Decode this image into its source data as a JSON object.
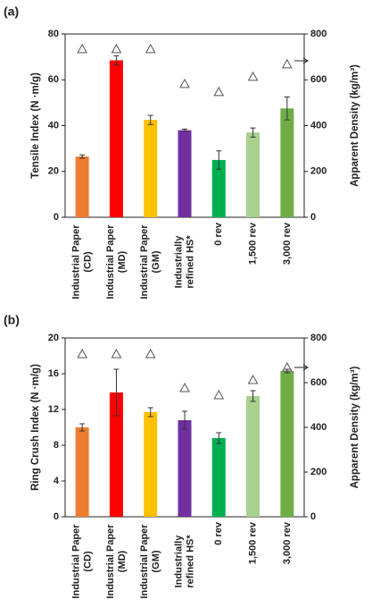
{
  "chart_data": [
    {
      "type": "bar",
      "panel_label": "(a)",
      "ylabel": "Tensile Index (N ·m/g)",
      "y2label": "Apparent Density (kg/m³)",
      "categories": [
        [
          "Industrial Paper",
          "(CD)"
        ],
        [
          "Industrial Paper",
          "(MD)"
        ],
        [
          "Industrial Paper",
          "(GM)"
        ],
        [
          "Industrially",
          "refined HS*"
        ],
        [
          "0 rev"
        ],
        [
          "1,500 rev"
        ],
        [
          "3,000 rev"
        ]
      ],
      "series": [
        {
          "values": [
            26.5,
            68.5,
            42.5,
            38,
            25,
            37,
            47.5
          ],
          "errors": [
            0.7,
            2,
            2,
            0.5,
            4,
            2,
            5
          ],
          "colors": [
            "#ed7d31",
            "#ff0000",
            "#ffc000",
            "#7030a0",
            "#00b050",
            "#a9d18e",
            "#70ad47"
          ]
        },
        {
          "axis": "y2",
          "marker": "triangle",
          "color": "#555555",
          "values": [
            734,
            734,
            734,
            582,
            547,
            613,
            668
          ]
        }
      ],
      "ylim": [
        0,
        80
      ],
      "yticks": [
        0,
        20,
        40,
        60,
        80
      ],
      "y2lim": [
        0,
        800
      ],
      "y2ticks": [
        0,
        200,
        400,
        600,
        800
      ]
    },
    {
      "type": "bar",
      "panel_label": "(b)",
      "ylabel": "Ring Crush Index (N ·m/g)",
      "y2label": "Apparent Density (kg/m³)",
      "categories": [
        [
          "Industrial Paper",
          "(CD)"
        ],
        [
          "Industrial Paper",
          "(MD)"
        ],
        [
          "Industrial Paper",
          "(GM)"
        ],
        [
          "Industrially",
          "refined HS*"
        ],
        [
          "0 rev"
        ],
        [
          "1,500 rev"
        ],
        [
          "3,000 rev"
        ]
      ],
      "series": [
        {
          "values": [
            10,
            13.9,
            11.7,
            10.8,
            8.8,
            13.5,
            16.3
          ],
          "errors": [
            0.4,
            2.6,
            0.5,
            1,
            0.6,
            0.6,
            0.2
          ],
          "colors": [
            "#ed7d31",
            "#ff0000",
            "#ffc000",
            "#7030a0",
            "#00b050",
            "#a9d18e",
            "#70ad47"
          ]
        },
        {
          "axis": "y2",
          "marker": "triangle",
          "color": "#555555",
          "values": [
            728,
            728,
            728,
            576,
            544,
            612,
            668
          ]
        }
      ],
      "ylim": [
        0,
        20
      ],
      "yticks": [
        0,
        4,
        8,
        12,
        16,
        20
      ],
      "y2lim": [
        0,
        800
      ],
      "y2ticks": [
        0,
        200,
        400,
        600,
        800
      ]
    }
  ]
}
